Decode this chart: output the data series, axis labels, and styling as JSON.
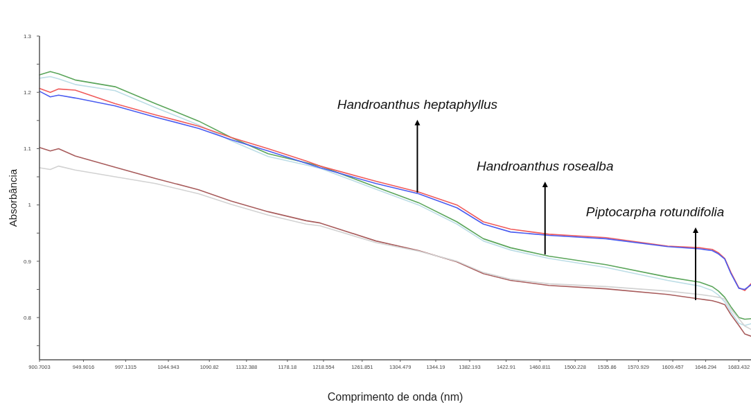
{
  "chart_data": {
    "type": "line",
    "xlabel": "Comprimento de onda (nm)",
    "ylabel": "Absorbância",
    "x": [
      900.7003,
      912.8,
      922.1,
      940.6,
      985.3,
      1030.5,
      1078.8,
      1115.1,
      1156.6,
      1199.1,
      1214.8,
      1277.3,
      1325.0,
      1367.9,
      1397.5,
      1427.9,
      1470.8,
      1534.5,
      1603.7,
      1639.5,
      1653.6,
      1660.6,
      1667.6,
      1674.6,
      1683.4,
      1690.0,
      1697.0
    ],
    "series": [
      {
        "color": "#5aa55a",
        "values": [
          1.231,
          1.237,
          1.233,
          1.222,
          1.21,
          1.18,
          1.149,
          1.12,
          1.091,
          1.075,
          1.069,
          1.032,
          1.004,
          0.97,
          0.94,
          0.924,
          0.909,
          0.894,
          0.872,
          0.863,
          0.855,
          0.847,
          0.836,
          0.819,
          0.8,
          0.797,
          0.798
        ]
      },
      {
        "color": "#bcdde6",
        "values": [
          1.225,
          1.228,
          1.224,
          1.214,
          1.203,
          1.173,
          1.142,
          1.114,
          1.086,
          1.071,
          1.065,
          1.028,
          1.0,
          0.966,
          0.936,
          0.92,
          0.905,
          0.889,
          0.866,
          0.856,
          0.848,
          0.84,
          0.828,
          0.81,
          0.79,
          0.786,
          0.789
        ]
      },
      {
        "color": "#f05a5a",
        "values": [
          1.207,
          1.2,
          1.206,
          1.204,
          1.18,
          1.16,
          1.14,
          1.12,
          1.1,
          1.078,
          1.069,
          1.042,
          1.023,
          1.0,
          0.97,
          0.957,
          0.948,
          0.942,
          0.927,
          0.924,
          0.921,
          0.915,
          0.905,
          0.88,
          0.853,
          0.848,
          0.86
        ]
      },
      {
        "color": "#4a5cf0",
        "values": [
          1.202,
          1.192,
          1.195,
          1.19,
          1.176,
          1.156,
          1.136,
          1.116,
          1.096,
          1.074,
          1.066,
          1.038,
          1.02,
          0.995,
          0.966,
          0.952,
          0.946,
          0.94,
          0.926,
          0.922,
          0.919,
          0.913,
          0.904,
          0.878,
          0.852,
          0.85,
          0.858
        ]
      },
      {
        "color": "#a85c5c",
        "values": [
          1.102,
          1.096,
          1.1,
          1.087,
          1.067,
          1.047,
          1.027,
          1.007,
          0.988,
          0.972,
          0.968,
          0.936,
          0.919,
          0.899,
          0.878,
          0.866,
          0.857,
          0.851,
          0.841,
          0.833,
          0.83,
          0.827,
          0.823,
          0.805,
          0.786,
          0.771,
          0.767
        ]
      },
      {
        "color": "#d2d2d2",
        "values": [
          1.066,
          1.063,
          1.069,
          1.062,
          1.05,
          1.038,
          1.02,
          1.001,
          0.982,
          0.966,
          0.963,
          0.933,
          0.918,
          0.9,
          0.88,
          0.868,
          0.86,
          0.855,
          0.847,
          0.841,
          0.838,
          0.836,
          0.833,
          0.815,
          0.798,
          0.785,
          0.779
        ]
      }
    ],
    "xlim": [
      900.7003,
      1697
    ],
    "xticks": [
      900.7003,
      949.9016,
      997.1315,
      1044.943,
      1090.82,
      1132.388,
      1178.18,
      1218.554,
      1261.851,
      1304.479,
      1344.19,
      1382.193,
      1422.91,
      1460.811,
      1500.228,
      1535.86,
      1570.929,
      1609.457,
      1646.294,
      1683.432
    ],
    "ylim": [
      0.725,
      1.3
    ],
    "yticks": [
      1.3,
      {
        "value": 1.25,
        "label": null
      },
      1.2,
      {
        "value": 1.15,
        "label": null
      },
      1.1,
      {
        "value": 1.05,
        "label": null
      },
      1,
      {
        "value": 0.95,
        "label": null
      },
      0.9,
      {
        "value": 0.85,
        "label": null
      },
      0.8,
      {
        "value": 0.75,
        "label": null
      }
    ],
    "annotations": [
      {
        "text": "Handroanthus heptaphyllus",
        "x": 1323.6,
        "y": 1.022
      },
      {
        "text": "Handroanthus rosealba",
        "x": 1466.5,
        "y": 0.912
      },
      {
        "text": "Piptocarpha rotundifolia",
        "x": 1635.0,
        "y": 0.831
      }
    ],
    "marker": "none",
    "line_style": "solid",
    "grid": false
  }
}
